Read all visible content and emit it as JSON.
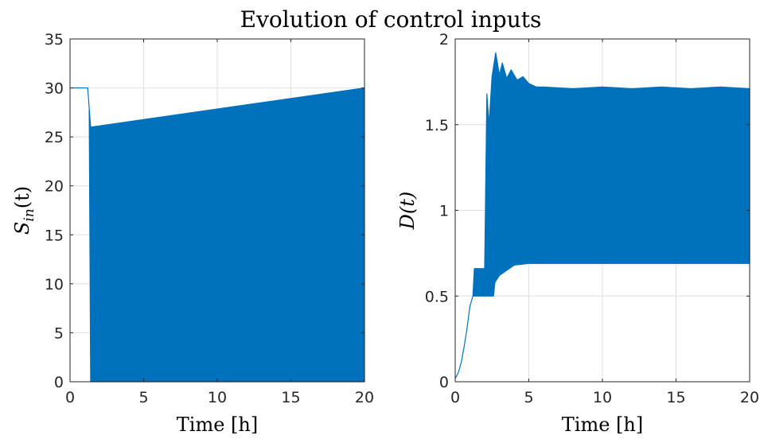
{
  "figure": {
    "title": "Evolution of control inputs"
  },
  "colors": {
    "series": "#0072BD",
    "grid": "#dfdfdf",
    "axis": "#262626"
  },
  "chart_data": [
    {
      "type": "area",
      "xlabel": "Time [h]",
      "ylabel": "S_in(t)",
      "ylabel_parts": {
        "main": "S",
        "sub": "in",
        "rest": "(t)"
      },
      "xlim": [
        0,
        20
      ],
      "ylim": [
        0,
        35
      ],
      "xticks": [
        0,
        5,
        10,
        15,
        20
      ],
      "yticks": [
        0,
        5,
        10,
        15,
        20,
        25,
        30,
        35
      ],
      "grid": true,
      "series": [
        {
          "upper": {
            "x": [
              0,
              1.2,
              1.3,
              1.4,
              20
            ],
            "y": [
              30,
              30,
              28,
              26,
              30
            ]
          },
          "lower": {
            "x": [
              0,
              1.2,
              1.3,
              1.4,
              20
            ],
            "y": [
              30,
              30,
              28,
              0,
              0
            ]
          }
        }
      ]
    },
    {
      "type": "area",
      "xlabel": "Time [h]",
      "ylabel": "D(t)",
      "xlim": [
        0,
        20
      ],
      "ylim": [
        0,
        2
      ],
      "xticks": [
        0,
        5,
        10,
        15,
        20
      ],
      "yticks": [
        0,
        0.5,
        1,
        1.5,
        2
      ],
      "grid": true,
      "series": [
        {
          "upper": {
            "x": [
              0,
              0.2,
              0.4,
              0.6,
              0.8,
              1.0,
              1.2,
              1.3,
              2.0,
              2.15,
              2.3,
              2.5,
              2.75,
              3.0,
              3.2,
              3.5,
              3.8,
              4.2,
              4.6,
              5.0,
              5.5,
              6.0,
              8.0,
              10.0,
              12.0,
              14.0,
              16.0,
              18.0,
              20.0
            ],
            "y": [
              0.02,
              0.05,
              0.11,
              0.2,
              0.31,
              0.44,
              0.5,
              0.66,
              0.66,
              1.68,
              1.5,
              1.78,
              1.92,
              1.79,
              1.86,
              1.77,
              1.82,
              1.76,
              1.78,
              1.74,
              1.72,
              1.72,
              1.71,
              1.72,
              1.71,
              1.72,
              1.71,
              1.72,
              1.71
            ]
          },
          "lower": {
            "x": [
              0,
              0.2,
              0.4,
              0.6,
              0.8,
              1.0,
              1.2,
              1.3,
              2.0,
              2.15,
              2.6,
              2.7,
              3.0,
              3.5,
              4.0,
              5.0,
              6.0,
              8.0,
              10.0,
              14.0,
              20.0
            ],
            "y": [
              0.02,
              0.05,
              0.11,
              0.2,
              0.31,
              0.44,
              0.5,
              0.5,
              0.5,
              0.5,
              0.5,
              0.58,
              0.62,
              0.65,
              0.68,
              0.69,
              0.69,
              0.69,
              0.69,
              0.69,
              0.69
            ]
          }
        }
      ]
    }
  ]
}
